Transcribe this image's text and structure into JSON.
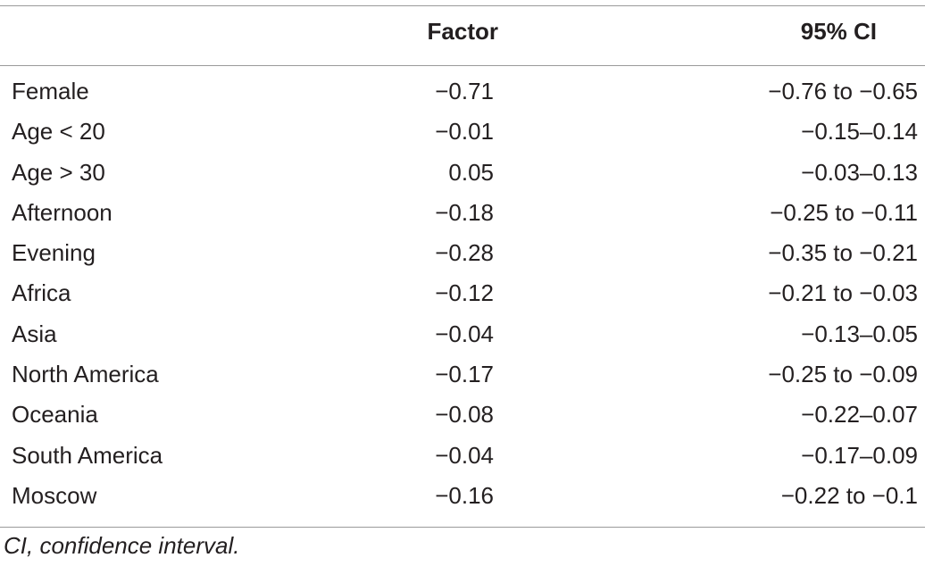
{
  "table": {
    "headers": {
      "label": "",
      "factor": "Factor",
      "ci": "95% CI"
    },
    "rows": [
      {
        "label": "Female",
        "factor": "−0.71",
        "ci": "−0.76 to −0.65"
      },
      {
        "label": "Age < 20",
        "factor": "−0.01",
        "ci": "−0.15–0.14"
      },
      {
        "label": "Age > 30",
        "factor": "0.05",
        "ci": "−0.03–0.13"
      },
      {
        "label": "Afternoon",
        "factor": "−0.18",
        "ci": "−0.25 to −0.11"
      },
      {
        "label": "Evening",
        "factor": "−0.28",
        "ci": "−0.35 to −0.21"
      },
      {
        "label": "Africa",
        "factor": "−0.12",
        "ci": "−0.21 to −0.03"
      },
      {
        "label": "Asia",
        "factor": "−0.04",
        "ci": "−0.13–0.05"
      },
      {
        "label": "North America",
        "factor": "−0.17",
        "ci": "−0.25 to −0.09"
      },
      {
        "label": "Oceania",
        "factor": "−0.08",
        "ci": "−0.22–0.07"
      },
      {
        "label": "South America",
        "factor": "−0.04",
        "ci": "−0.17–0.09"
      },
      {
        "label": "Moscow",
        "factor": "−0.16",
        "ci": "−0.22 to −0.1"
      }
    ]
  },
  "footnote": "CI, confidence interval."
}
